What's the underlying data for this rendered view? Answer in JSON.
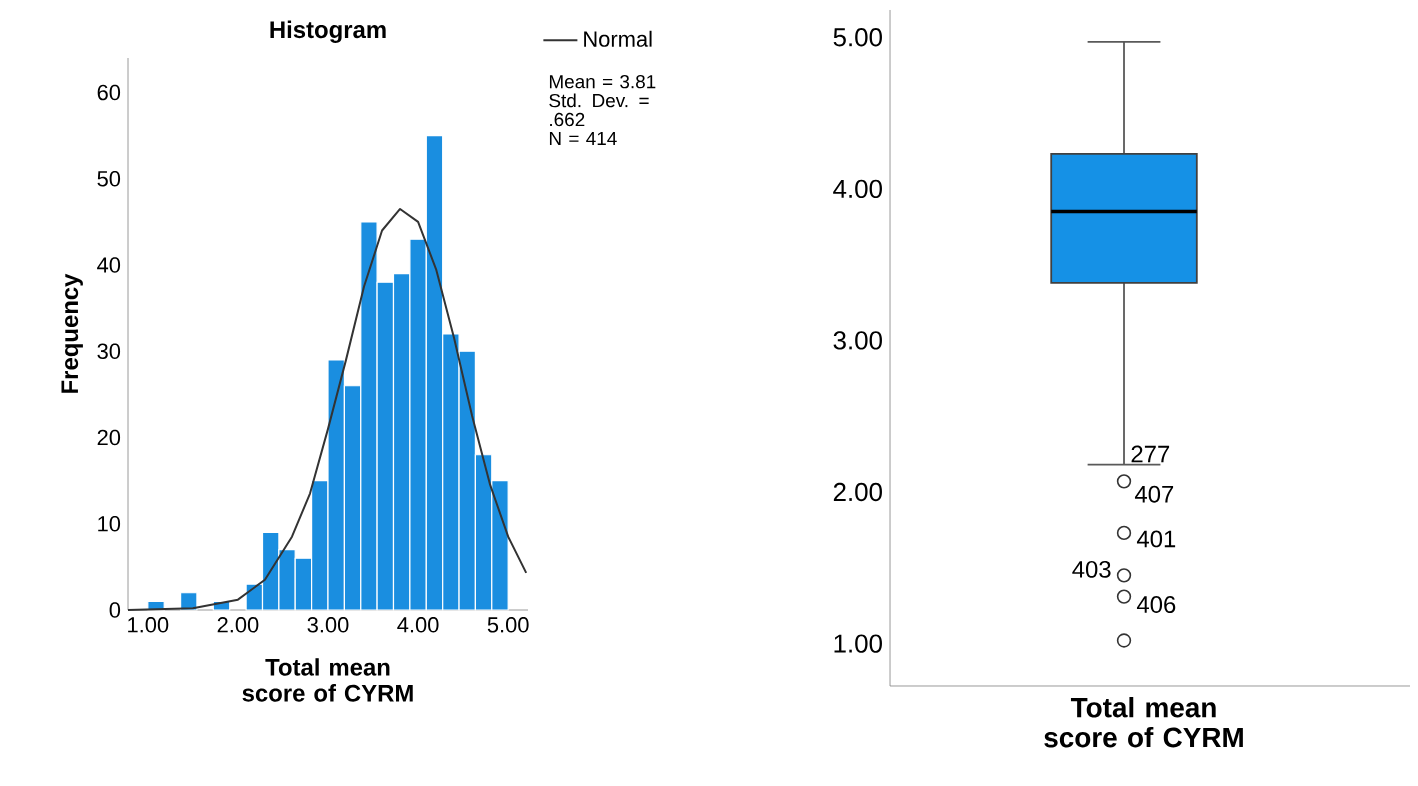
{
  "chart_data": [
    {
      "type": "histogram",
      "title": "Histogram",
      "xlabel": "Total mean score of CYRM",
      "ylabel": "Frequency",
      "bins": [
        1.0,
        1.182,
        1.364,
        1.545,
        1.727,
        1.909,
        2.091,
        2.273,
        2.455,
        2.636,
        2.818,
        3.0,
        3.182,
        3.364,
        3.545,
        3.727,
        3.909,
        4.091,
        4.273,
        4.455,
        4.636,
        4.818,
        5.0
      ],
      "values": [
        1,
        0,
        2,
        0,
        1,
        0,
        3,
        9,
        7,
        6,
        15,
        29,
        26,
        45,
        38,
        39,
        43,
        55,
        32,
        30,
        18,
        15
      ],
      "color": "#1a8ee0",
      "series": [
        {
          "type": "line",
          "name": "Normal",
          "color": "#333333",
          "x": [
            0.78,
            1.5,
            2.0,
            2.3,
            2.6,
            2.8,
            3.0,
            3.2,
            3.4,
            3.6,
            3.8,
            4.0,
            4.2,
            4.4,
            4.6,
            4.8,
            5.0,
            5.2
          ],
          "values": [
            0,
            0.2,
            1.2,
            3.5,
            8.5,
            13.5,
            21,
            29,
            37.5,
            44,
            46.5,
            45,
            39.5,
            31.5,
            22.5,
            14.5,
            8.5,
            4.3
          ]
        }
      ],
      "xlim": [
        0.78,
        5.22
      ],
      "ylim": [
        0,
        64
      ],
      "xticks": [
        {
          "value": 1,
          "label": "1.00"
        },
        {
          "value": 2,
          "label": "2.00"
        },
        {
          "value": 3,
          "label": "3.00"
        },
        {
          "value": 4,
          "label": "4.00"
        },
        {
          "value": 5,
          "label": "5.00"
        }
      ],
      "yticks": [
        0,
        10,
        20,
        30,
        40,
        50,
        60
      ],
      "legend": "top right",
      "annotations": [
        "Mean = 3.81",
        "Std. Dev. = .662",
        "N = 414"
      ]
    },
    {
      "type": "box",
      "xlabel": "Total mean score of CYRM",
      "categories": [
        null
      ],
      "color": "#1591e6",
      "boxes": [
        {
          "low": 2.18,
          "q1": 3.38,
          "median": 3.85,
          "q3": 4.23,
          "high": 4.97,
          "outliers": [
            2.07,
            1.73,
            1.45,
            1.31,
            1.02
          ]
        }
      ],
      "ylim": [
        0.72,
        5.18
      ],
      "yticks": [
        {
          "value": 1,
          "label": "1.00"
        },
        {
          "value": 2,
          "label": "2.00"
        },
        {
          "value": 3,
          "label": "3.00"
        },
        {
          "value": 4,
          "label": "4.00"
        },
        {
          "value": 5,
          "label": "5.00"
        }
      ],
      "annotations": [
        "277",
        "407",
        "401",
        "403",
        "406"
      ]
    }
  ]
}
